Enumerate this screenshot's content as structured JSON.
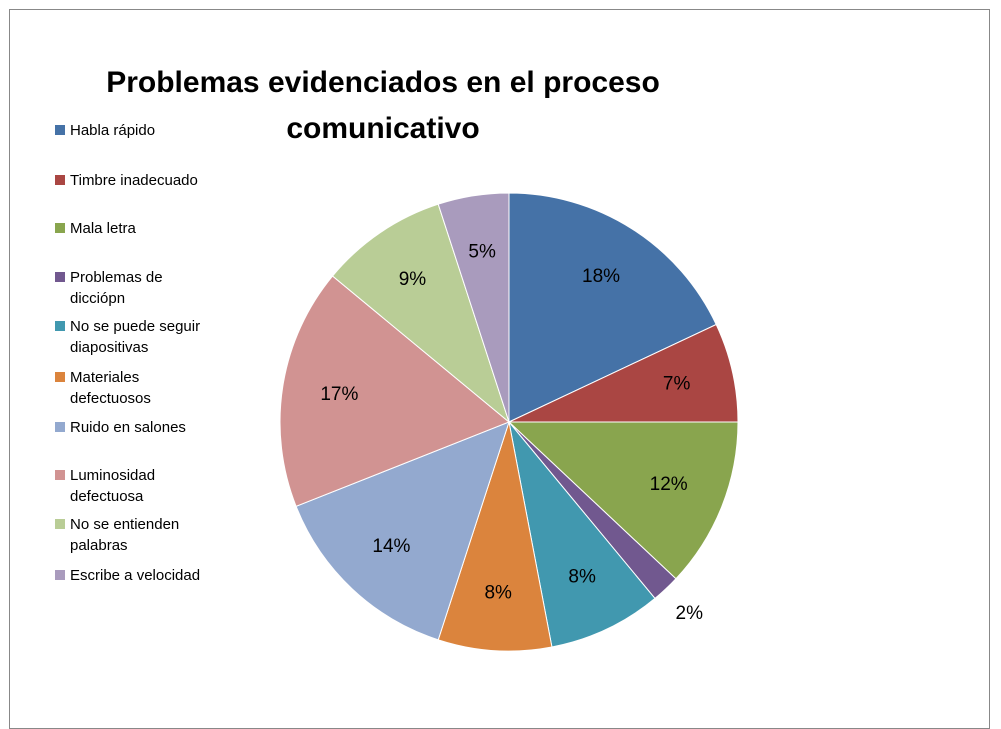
{
  "chart_data": {
    "type": "pie",
    "title": "Problemas evidenciados en el proceso comunicativo",
    "categories": [
      "Habla rápido",
      "Timbre inadecuado",
      "Mala letra",
      "Problemas de dicciópn",
      "No se puede seguir diapositivas",
      "Materiales defectuosos",
      "Ruido en salones",
      "Luminosidad defectuosa",
      "No se entienden palabras",
      "Escribe a velocidad"
    ],
    "values": [
      18,
      7,
      12,
      2,
      8,
      8,
      14,
      17,
      9,
      5
    ],
    "value_labels": [
      "18%",
      "7%",
      "12%",
      "2%",
      "8%",
      "8%",
      "14%",
      "17%",
      "9%",
      "5%"
    ],
    "colors": [
      "#4572a7",
      "#aa4643",
      "#89a54e",
      "#71588f",
      "#4198af",
      "#db843d",
      "#93a9cf",
      "#d19392",
      "#b9cd96",
      "#a99bbd"
    ],
    "legend": "left"
  }
}
